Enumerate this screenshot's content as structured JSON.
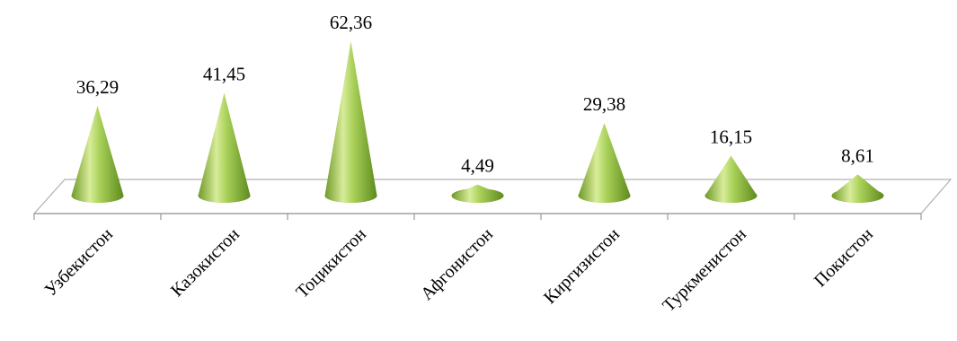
{
  "chart_data": {
    "type": "bar",
    "style": "3d-cone",
    "categories": [
      "Узбекистон",
      "Казокистон",
      "Тоцикистон",
      "Афгонистон",
      "Киргизистон",
      "Туркменистон",
      "Покистон"
    ],
    "values": [
      36.29,
      41.45,
      62.36,
      4.49,
      29.38,
      16.15,
      8.61
    ],
    "value_labels": [
      "36,29",
      "41,45",
      "62,36",
      "4,49",
      "29,38",
      "16,15",
      "8,61"
    ],
    "title": "",
    "xlabel": "",
    "ylabel": "",
    "ylim": [
      0,
      62.36
    ],
    "grid": false,
    "legend": "none",
    "colors": {
      "cone_light": "#d8ec9a",
      "cone_mid": "#9ac44a",
      "cone_dark": "#5e8a1e",
      "floor_edge": "#a8a8a8"
    }
  }
}
